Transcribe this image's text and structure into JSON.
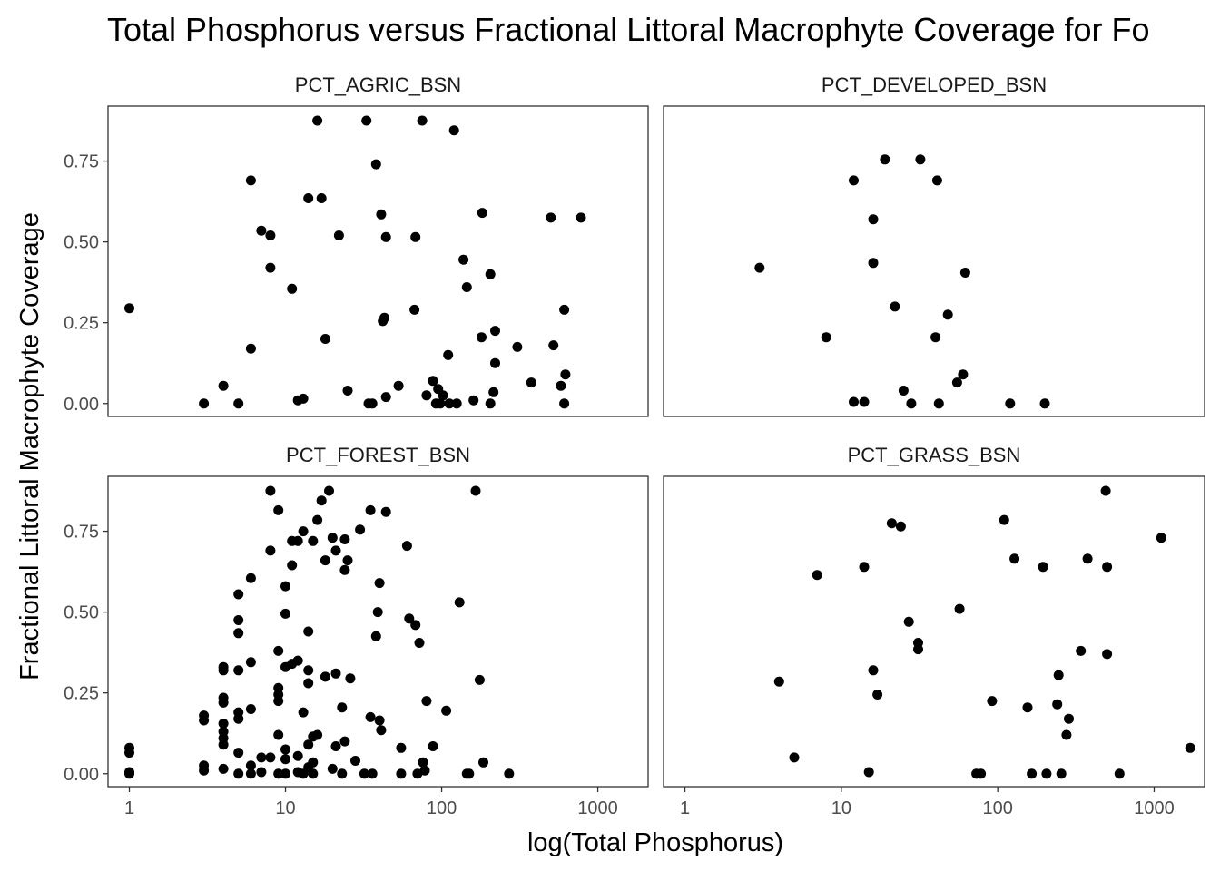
{
  "chart_data": {
    "type": "scatter",
    "title": "Total Phosphorus versus Fractional Littoral Macrophyte Coverage for Fo",
    "xlabel": "log(Total Phosphorus)",
    "ylabel": "Fractional Littoral Macrophyte Coverage",
    "x_scale": "log10",
    "x_ticks": [
      1,
      10,
      100,
      1000
    ],
    "x_tick_labels": [
      "1",
      "10",
      "100",
      "1000"
    ],
    "xlim": [
      0.73,
      2100
    ],
    "y_ticks": [
      0,
      0.25,
      0.5,
      0.75
    ],
    "y_tick_labels": [
      "0.00",
      "0.25",
      "0.50",
      "0.75"
    ],
    "ylim": [
      -0.04,
      0.92
    ],
    "point_color": "#000000",
    "grid": false,
    "panels": [
      {
        "name": "PCT_AGRIC_BSN",
        "points": [
          [
            1,
            0.295
          ],
          [
            3,
            0
          ],
          [
            4,
            0.055
          ],
          [
            5,
            0
          ],
          [
            6,
            0.69
          ],
          [
            6,
            0.17
          ],
          [
            7,
            0.535
          ],
          [
            8,
            0.52
          ],
          [
            8,
            0.42
          ],
          [
            11,
            0.355
          ],
          [
            12,
            0.01
          ],
          [
            13,
            0.015
          ],
          [
            14,
            0.635
          ],
          [
            16,
            0.875
          ],
          [
            17,
            0.635
          ],
          [
            18,
            0.2
          ],
          [
            22,
            0.52
          ],
          [
            25,
            0.04
          ],
          [
            33,
            0.875
          ],
          [
            34,
            0
          ],
          [
            36,
            0
          ],
          [
            38,
            0.74
          ],
          [
            41,
            0.585
          ],
          [
            42,
            0.255
          ],
          [
            43,
            0.265
          ],
          [
            44,
            0.515
          ],
          [
            44,
            0.02
          ],
          [
            53,
            0.055
          ],
          [
            67,
            0.29
          ],
          [
            68,
            0.515
          ],
          [
            75,
            0.875
          ],
          [
            80,
            0.025
          ],
          [
            88,
            0.07
          ],
          [
            92,
            0
          ],
          [
            95,
            0.045
          ],
          [
            98,
            0
          ],
          [
            102,
            0.025
          ],
          [
            110,
            0.15
          ],
          [
            112,
            0
          ],
          [
            120,
            0.845
          ],
          [
            125,
            0
          ],
          [
            138,
            0.445
          ],
          [
            145,
            0.36
          ],
          [
            160,
            0.01
          ],
          [
            180,
            0.205
          ],
          [
            182,
            0.59
          ],
          [
            205,
            0.4
          ],
          [
            205,
            0
          ],
          [
            215,
            0.035
          ],
          [
            220,
            0.125
          ],
          [
            220,
            0.225
          ],
          [
            305,
            0.175
          ],
          [
            375,
            0.065
          ],
          [
            500,
            0.575
          ],
          [
            520,
            0.18
          ],
          [
            580,
            0.055
          ],
          [
            610,
            0.29
          ],
          [
            620,
            0.09
          ],
          [
            610,
            0
          ],
          [
            780,
            0.575
          ]
        ]
      },
      {
        "name": "PCT_DEVELOPED_BSN",
        "points": [
          [
            3,
            0.42
          ],
          [
            8,
            0.205
          ],
          [
            12,
            0.69
          ],
          [
            12,
            0.005
          ],
          [
            14,
            0.005
          ],
          [
            16,
            0.57
          ],
          [
            16,
            0.435
          ],
          [
            19,
            0.755
          ],
          [
            22,
            0.3
          ],
          [
            25,
            0.04
          ],
          [
            28,
            0
          ],
          [
            32,
            0.755
          ],
          [
            40,
            0.205
          ],
          [
            41,
            0.69
          ],
          [
            42,
            0
          ],
          [
            48,
            0.275
          ],
          [
            55,
            0.065
          ],
          [
            60,
            0.09
          ],
          [
            62,
            0.405
          ],
          [
            120,
            0
          ],
          [
            200,
            0
          ]
        ]
      },
      {
        "name": "PCT_FOREST_BSN",
        "points": [
          [
            1,
            0.08
          ],
          [
            1,
            0.065
          ],
          [
            1,
            0.005
          ],
          [
            1,
            0
          ],
          [
            3,
            0.18
          ],
          [
            3,
            0.165
          ],
          [
            3,
            0.025
          ],
          [
            3,
            0.01
          ],
          [
            4,
            0.33
          ],
          [
            4,
            0.32
          ],
          [
            4,
            0.235
          ],
          [
            4,
            0.22
          ],
          [
            4,
            0.155
          ],
          [
            4,
            0.13
          ],
          [
            4,
            0.11
          ],
          [
            4,
            0.09
          ],
          [
            4,
            0.015
          ],
          [
            5,
            0.555
          ],
          [
            5,
            0.475
          ],
          [
            5,
            0.435
          ],
          [
            5,
            0.32
          ],
          [
            5,
            0.19
          ],
          [
            5,
            0.17
          ],
          [
            5,
            0.065
          ],
          [
            5,
            0
          ],
          [
            6,
            0.605
          ],
          [
            6,
            0.345
          ],
          [
            6,
            0.2
          ],
          [
            6,
            0.025
          ],
          [
            6,
            0
          ],
          [
            7,
            0.05
          ],
          [
            7,
            0.005
          ],
          [
            8,
            0.875
          ],
          [
            8,
            0.69
          ],
          [
            8,
            0.05
          ],
          [
            9,
            0.815
          ],
          [
            9,
            0.38
          ],
          [
            9,
            0.265
          ],
          [
            9,
            0.245
          ],
          [
            9,
            0.225
          ],
          [
            9,
            0.12
          ],
          [
            9,
            0
          ],
          [
            10,
            0.58
          ],
          [
            10,
            0.495
          ],
          [
            10,
            0.33
          ],
          [
            10,
            0.075
          ],
          [
            10,
            0.045
          ],
          [
            10,
            0
          ],
          [
            11,
            0.72
          ],
          [
            11,
            0.645
          ],
          [
            11,
            0.34
          ],
          [
            12,
            0.72
          ],
          [
            12,
            0.35
          ],
          [
            12,
            0.055
          ],
          [
            12,
            0.005
          ],
          [
            13,
            0.75
          ],
          [
            13,
            0.19
          ],
          [
            13,
            0
          ],
          [
            14,
            0.44
          ],
          [
            14,
            0.32
          ],
          [
            14,
            0.28
          ],
          [
            14,
            0.09
          ],
          [
            14,
            0.02
          ],
          [
            15,
            0.72
          ],
          [
            15,
            0.115
          ],
          [
            15,
            0.035
          ],
          [
            15,
            0
          ],
          [
            16,
            0.785
          ],
          [
            16,
            0.12
          ],
          [
            17,
            0.845
          ],
          [
            18,
            0.66
          ],
          [
            18,
            0.3
          ],
          [
            19,
            0.875
          ],
          [
            20,
            0.73
          ],
          [
            20,
            0.015
          ],
          [
            21,
            0.69
          ],
          [
            21,
            0.31
          ],
          [
            21,
            0.085
          ],
          [
            23,
            0.205
          ],
          [
            23,
            0
          ],
          [
            24,
            0.725
          ],
          [
            24,
            0.63
          ],
          [
            24,
            0.1
          ],
          [
            25,
            0.66
          ],
          [
            26,
            0.295
          ],
          [
            28,
            0.04
          ],
          [
            30,
            0.755
          ],
          [
            32,
            0
          ],
          [
            35,
            0.815
          ],
          [
            35,
            0.175
          ],
          [
            36,
            0
          ],
          [
            38,
            0.425
          ],
          [
            39,
            0.5
          ],
          [
            40,
            0.59
          ],
          [
            40,
            0.165
          ],
          [
            41,
            0.135
          ],
          [
            44,
            0.81
          ],
          [
            55,
            0.08
          ],
          [
            55,
            0
          ],
          [
            60,
            0.705
          ],
          [
            62,
            0.48
          ],
          [
            68,
            0.46
          ],
          [
            70,
            0
          ],
          [
            72,
            0.405
          ],
          [
            76,
            0.035
          ],
          [
            78,
            0.01
          ],
          [
            80,
            0.225
          ],
          [
            88,
            0.085
          ],
          [
            107,
            0.195
          ],
          [
            130,
            0.53
          ],
          [
            145,
            0
          ],
          [
            150,
            0
          ],
          [
            165,
            0.875
          ],
          [
            175,
            0.29
          ],
          [
            185,
            0.035
          ],
          [
            270,
            0
          ]
        ]
      },
      {
        "name": "PCT_GRASS_BSN",
        "points": [
          [
            4,
            0.285
          ],
          [
            5,
            0.05
          ],
          [
            7,
            0.615
          ],
          [
            14,
            0.64
          ],
          [
            15,
            0.005
          ],
          [
            16,
            0.32
          ],
          [
            17,
            0.245
          ],
          [
            21,
            0.775
          ],
          [
            24,
            0.765
          ],
          [
            27,
            0.47
          ],
          [
            31,
            0.405
          ],
          [
            31,
            0.385
          ],
          [
            57,
            0.51
          ],
          [
            73,
            0
          ],
          [
            78,
            0
          ],
          [
            92,
            0.225
          ],
          [
            110,
            0.785
          ],
          [
            128,
            0.665
          ],
          [
            155,
            0.205
          ],
          [
            165,
            0
          ],
          [
            195,
            0.64
          ],
          [
            205,
            0
          ],
          [
            240,
            0.215
          ],
          [
            245,
            0.305
          ],
          [
            255,
            0
          ],
          [
            275,
            0.12
          ],
          [
            285,
            0.17
          ],
          [
            340,
            0.38
          ],
          [
            375,
            0.665
          ],
          [
            490,
            0.875
          ],
          [
            500,
            0.37
          ],
          [
            500,
            0.64
          ],
          [
            600,
            0
          ],
          [
            1110,
            0.73
          ],
          [
            1700,
            0.08
          ]
        ]
      }
    ]
  }
}
